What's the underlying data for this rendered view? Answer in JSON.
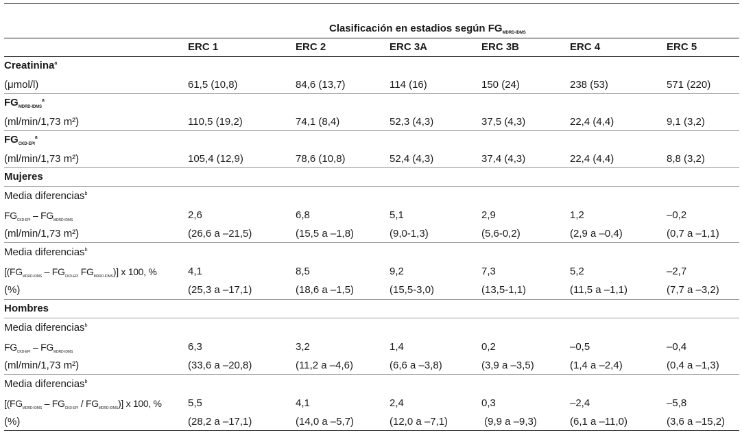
{
  "table": {
    "header": {
      "caption": "Clasificación en estadios según FG",
      "caption_sub": "MDRD-IDMS",
      "columns": [
        "ERC 1",
        "ERC 2",
        "ERC 3A",
        "ERC 3B",
        "ERC 4",
        "ERC 5"
      ]
    },
    "creatinina": {
      "label": "Creatinina",
      "mark": "a",
      "unit": "(μmol/l)",
      "values": [
        "61,5 (10,8)",
        "84,6 (13,7)",
        "114 (16)",
        "150 (24)",
        "238 (53)",
        "571 (220)"
      ]
    },
    "fg_mdrd": {
      "label": "FG",
      "sub": "MDRD-IDMS",
      "mark": "a",
      "unit": "(ml/min/1,73 m²)",
      "values": [
        "110,5 (19,2)",
        "74,1 (8,4)",
        "52,3 (4,3)",
        "37,5 (4,3)",
        "22,4 (4,4)",
        "9,1 (3,2)"
      ]
    },
    "fg_ckd": {
      "label": "FG",
      "sub": "CKD-EPI",
      "mark": "a",
      "unit": "(ml/min/1,73 m²)",
      "values": [
        "105,4 (12,9)",
        "78,6 (10,8)",
        "52,4 (4,3)",
        "37,4 (4,3)",
        "22,4 (4,4)",
        "8,8 (3,2)"
      ]
    },
    "mujeres": {
      "label": "Mujeres",
      "abs": {
        "title": "Media diferencias",
        "mark": "b",
        "fg": "FG",
        "sub_ckd": "CKD-EPI",
        "minus": " – ",
        "sub_mdrd": "MDRD-IDMS",
        "unit": "(ml/min/1,73 m²)",
        "values": [
          "2,6",
          "6,8",
          "5,1",
          "2,9",
          "1,2",
          "–0,2"
        ],
        "ci": [
          "(26,6 a –21,5)",
          "(15,5 a –1,8)",
          "(9,0-1,3)",
          "(5,6-0,2)",
          "(2,9 a –0,4)",
          "(0,7 a –1,1)"
        ]
      },
      "rel": {
        "title": "Media diferencias",
        "mark": "b",
        "open": "[(FG",
        "sub_mdrd": "MDRD-IDMS",
        "minus": " – FG",
        "sub_ckd": "CKD-EPI",
        "mid": "  FG",
        "sub_mdrd2": "MDRD-IDMS",
        "close": ")] x 100, %",
        "unit": "(%)",
        "values": [
          "4,1",
          "8,5",
          "9,2",
          "7,3",
          "5,2",
          "–2,7"
        ],
        "ci": [
          "(25,3 a –17,1)",
          "(18,6 a –1,5)",
          "(15,5-3,0)",
          "(13,5-1,1)",
          "(11,5 a –1,1)",
          "(7,7 a –3,2)"
        ]
      }
    },
    "hombres": {
      "label": "Hombres",
      "abs": {
        "title": "Media diferencias",
        "mark": "b",
        "fg": "FG",
        "sub_ckd": "CKD-EPI",
        "minus": " – ",
        "sub_mdrd": "MDRD-IDMS",
        "unit": "(ml/min/1,73 m²)",
        "values": [
          "6,3",
          "3,2",
          "1,4",
          "0,2",
          "–0,5",
          "–0,4"
        ],
        "ci": [
          "(33,6 a –20,8)",
          "(11,2 a –4,6)",
          "(6,6 a –3,8)",
          "(3,9 a –3,5)",
          "(1,4 a –2,4)",
          "(0,4 a –1,3)"
        ]
      },
      "rel": {
        "title": "Media diferencias",
        "mark": "b",
        "open": "[(FG",
        "sub_mdrd": "MDRD-IDMS",
        "minus": " – FG",
        "sub_ckd": "CKD-EPI",
        "mid": " / FG",
        "sub_mdrd2": "MDRD-IDMS",
        "close": ")] x 100, %",
        "unit": "(%)",
        "values": [
          "5,5",
          "4,1",
          "2,4",
          "0,3",
          "–2,4",
          "–5,8"
        ],
        "ci": [
          "(28,2 a –17,1)",
          "(14,0 a –5,7)",
          "(12,0 a –7,1)",
          " (9,9 a –9,3)",
          "(6,1 a –11,0)",
          "(3,6 a –15,2)"
        ]
      }
    }
  }
}
